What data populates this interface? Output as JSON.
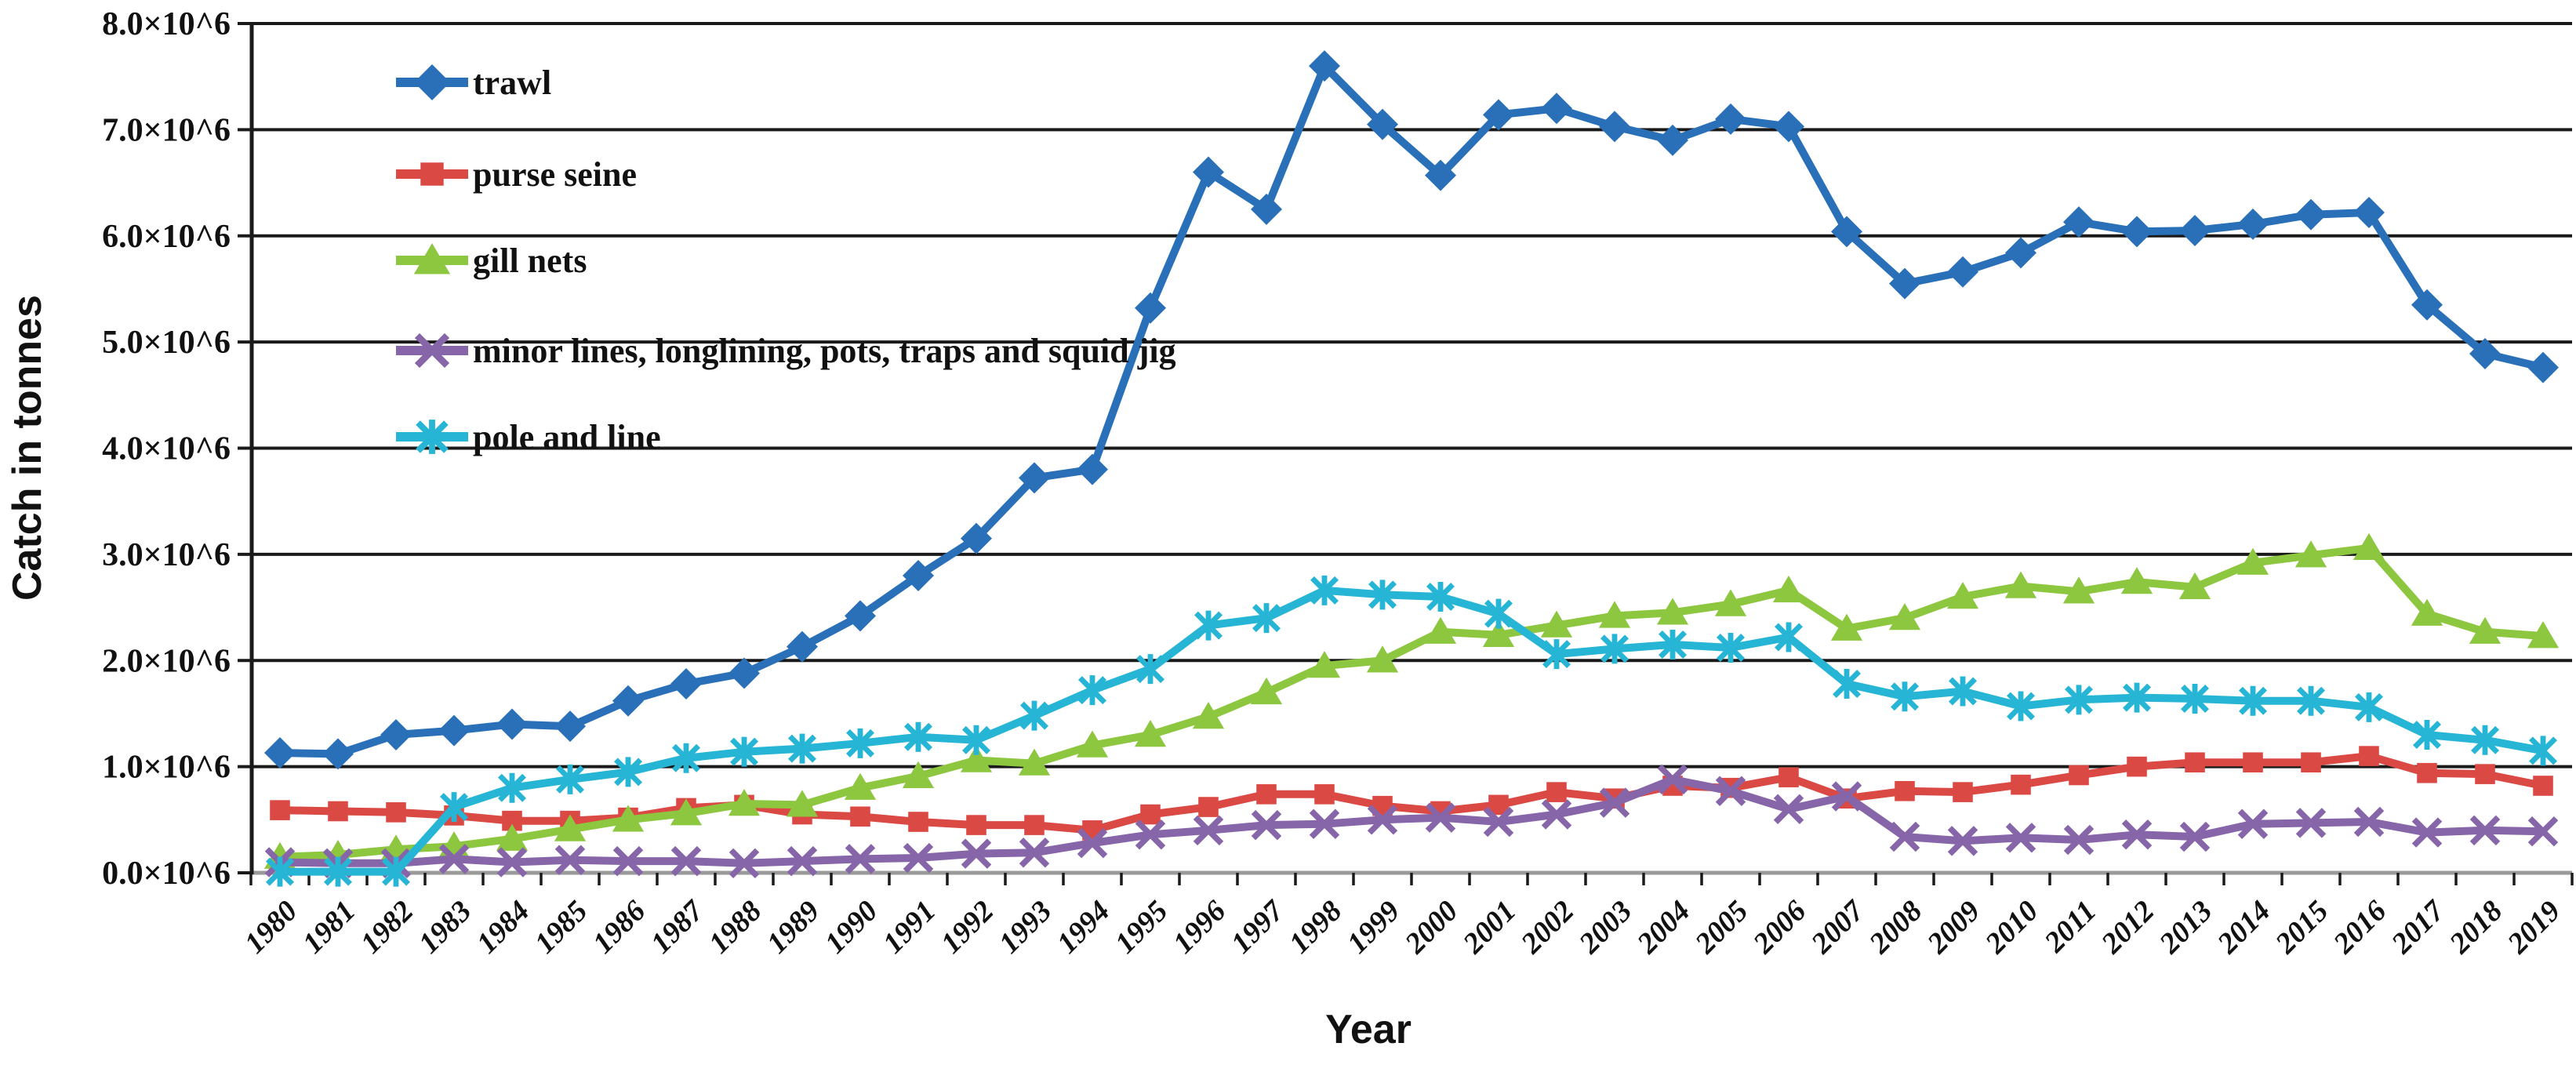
{
  "chart_data": {
    "type": "line",
    "title": "",
    "xlabel": "Year",
    "ylabel": "Catch in tonnes",
    "grid": true,
    "legend_position": "upper-left-inside",
    "ylim": [
      0,
      8000000
    ],
    "ytick_labels": [
      "0.0×10^6",
      "1.0×10^6",
      "2.0×10^6",
      "3.0×10^6",
      "4.0×10^6",
      "5.0×10^6",
      "6.0×10^6",
      "7.0×10^6",
      "8.0×10^6"
    ],
    "x": [
      1980,
      1981,
      1982,
      1983,
      1984,
      1985,
      1986,
      1987,
      1988,
      1989,
      1990,
      1991,
      1992,
      1993,
      1994,
      1995,
      1996,
      1997,
      1998,
      1999,
      2000,
      2001,
      2002,
      2003,
      2004,
      2005,
      2006,
      2007,
      2008,
      2009,
      2010,
      2011,
      2012,
      2013,
      2014,
      2015,
      2016,
      2017,
      2018,
      2019
    ],
    "series": [
      {
        "name": "trawl",
        "color": "#2970B8",
        "marker": "diamond",
        "values": [
          1130000,
          1120000,
          1300000,
          1340000,
          1400000,
          1380000,
          1620000,
          1780000,
          1880000,
          2130000,
          2420000,
          2800000,
          3150000,
          3720000,
          3800000,
          5320000,
          6600000,
          6250000,
          7600000,
          7050000,
          6570000,
          7140000,
          7200000,
          7030000,
          6900000,
          7100000,
          7030000,
          6040000,
          5550000,
          5660000,
          5840000,
          6130000,
          6040000,
          6050000,
          6110000,
          6200000,
          6220000,
          5350000,
          4890000,
          4760000
        ]
      },
      {
        "name": "purse seine",
        "color": "#DB4944",
        "marker": "square",
        "values": [
          590000,
          580000,
          570000,
          540000,
          490000,
          490000,
          520000,
          610000,
          640000,
          550000,
          530000,
          480000,
          450000,
          450000,
          400000,
          550000,
          620000,
          740000,
          740000,
          630000,
          580000,
          640000,
          760000,
          700000,
          820000,
          800000,
          900000,
          700000,
          770000,
          760000,
          830000,
          920000,
          1000000,
          1040000,
          1040000,
          1040000,
          1100000,
          940000,
          930000,
          820000
        ]
      },
      {
        "name": "gill nets",
        "color": "#8DC63F",
        "marker": "triangle",
        "values": [
          150000,
          170000,
          220000,
          250000,
          320000,
          410000,
          500000,
          560000,
          650000,
          640000,
          800000,
          910000,
          1060000,
          1030000,
          1200000,
          1300000,
          1470000,
          1700000,
          1950000,
          2000000,
          2270000,
          2240000,
          2330000,
          2420000,
          2450000,
          2530000,
          2660000,
          2300000,
          2400000,
          2600000,
          2700000,
          2650000,
          2740000,
          2690000,
          2920000,
          2990000,
          3060000,
          2440000,
          2270000,
          2230000
        ]
      },
      {
        "name": "minor lines, longlining, pots, traps and squid jig",
        "color": "#8765A9",
        "marker": "xmark",
        "values": [
          100000,
          90000,
          90000,
          130000,
          100000,
          120000,
          110000,
          110000,
          90000,
          110000,
          130000,
          140000,
          180000,
          190000,
          280000,
          360000,
          400000,
          450000,
          460000,
          500000,
          520000,
          480000,
          550000,
          660000,
          880000,
          770000,
          600000,
          720000,
          340000,
          300000,
          330000,
          310000,
          360000,
          340000,
          460000,
          470000,
          480000,
          380000,
          400000,
          390000
        ]
      },
      {
        "name": "pole and line",
        "color": "#27B5D6",
        "marker": "asterisk",
        "values": [
          10000,
          10000,
          10000,
          620000,
          800000,
          880000,
          950000,
          1080000,
          1140000,
          1170000,
          1220000,
          1280000,
          1250000,
          1480000,
          1720000,
          1920000,
          2330000,
          2400000,
          2660000,
          2620000,
          2600000,
          2440000,
          2060000,
          2110000,
          2150000,
          2120000,
          2220000,
          1780000,
          1660000,
          1710000,
          1570000,
          1630000,
          1650000,
          1640000,
          1620000,
          1620000,
          1560000,
          1300000,
          1250000,
          1150000
        ]
      }
    ],
    "colors": {
      "gridline": "#1a1a1a",
      "axis_line": "#9a9a9a",
      "tick": "#1a1a1a",
      "text": "#111111"
    }
  }
}
